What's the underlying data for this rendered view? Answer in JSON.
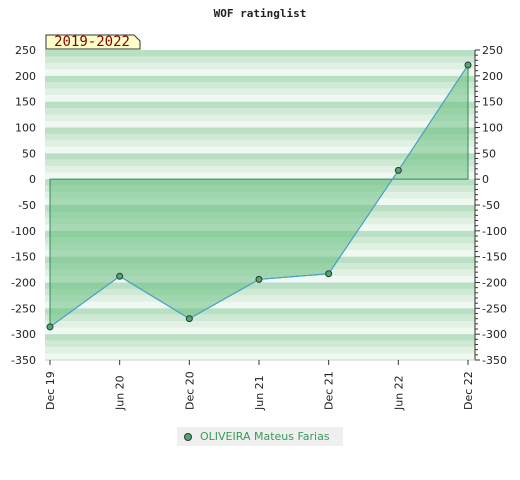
{
  "chart_data": {
    "type": "area",
    "title": "WOF ratinglist",
    "badge": "2019-2022",
    "x": [
      "Dec 19",
      "Jun 20",
      "Dec 20",
      "Jun 21",
      "Dec 21",
      "Jun 22",
      "Dec 22"
    ],
    "series": [
      {
        "name": "OLIVEIRA Mateus Farias",
        "values": [
          -286,
          -188,
          -270,
          -194,
          -183,
          17,
          221
        ]
      }
    ],
    "ylim": [
      -350,
      250
    ],
    "yticks": [
      250,
      200,
      150,
      100,
      50,
      0,
      -50,
      -100,
      -150,
      -200,
      -250,
      -300,
      -350
    ],
    "y_axes": "left and right",
    "legend": "bottom-center",
    "colors": {
      "series_line": "#4a9fd8",
      "fill": "#6cbf82",
      "point": "#4caa6e",
      "band_dark": "#b9e0c4",
      "band_light": "#f0f8f2",
      "badge_bg": "#ffffc8",
      "badge_text": "#8b0000"
    }
  }
}
